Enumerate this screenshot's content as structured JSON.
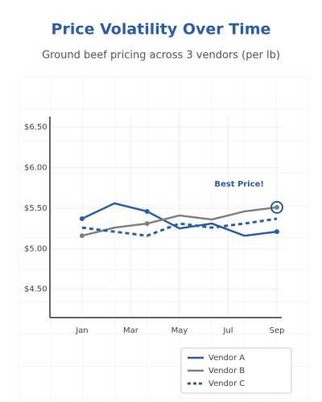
{
  "chart_data": {
    "type": "line",
    "title": "Price Volatility Over Time",
    "subtitle": "Ground beef pricing across 3 vendors (per lb)",
    "x": [
      1,
      2.33,
      3.67,
      5,
      6.33,
      7.67,
      9
    ],
    "xlim": [
      -0.32,
      9.2
    ],
    "xticks": [
      {
        "value": 1,
        "label": "Jan"
      },
      {
        "value": 3,
        "label": "Mar"
      },
      {
        "value": 5,
        "label": "May"
      },
      {
        "value": 7,
        "label": "Jul"
      },
      {
        "value": 9,
        "label": "Sep"
      }
    ],
    "ylim": [
      4.15,
      6.63
    ],
    "yticks": [
      {
        "value": 4.5,
        "label": "$4.50"
      },
      {
        "value": 5,
        "label": "$5.00"
      },
      {
        "value": 5.5,
        "label": "$5.50"
      },
      {
        "value": 6,
        "label": "$6.00"
      },
      {
        "value": 6.5,
        "label": "$6.50"
      }
    ],
    "grid": true,
    "legend": "lower right",
    "series": [
      {
        "name": "Vendor A",
        "color": "#2b5ea7",
        "style": "solid",
        "values": [
          5.37,
          5.56,
          5.46,
          5.25,
          5.31,
          5.16,
          5.21
        ]
      },
      {
        "name": "Vendor B",
        "color": "#808080",
        "style": "solid",
        "values": [
          5.16,
          5.26,
          5.31,
          5.41,
          5.36,
          5.46,
          5.51
        ]
      },
      {
        "name": "Vendor C",
        "color": "#2b5ea7",
        "style": "dashed",
        "values": [
          5.26,
          5.21,
          5.16,
          5.31,
          5.26,
          5.31,
          5.37
        ]
      }
    ],
    "annotation": {
      "text": "Best Price!",
      "series": 1,
      "index": 6
    }
  }
}
